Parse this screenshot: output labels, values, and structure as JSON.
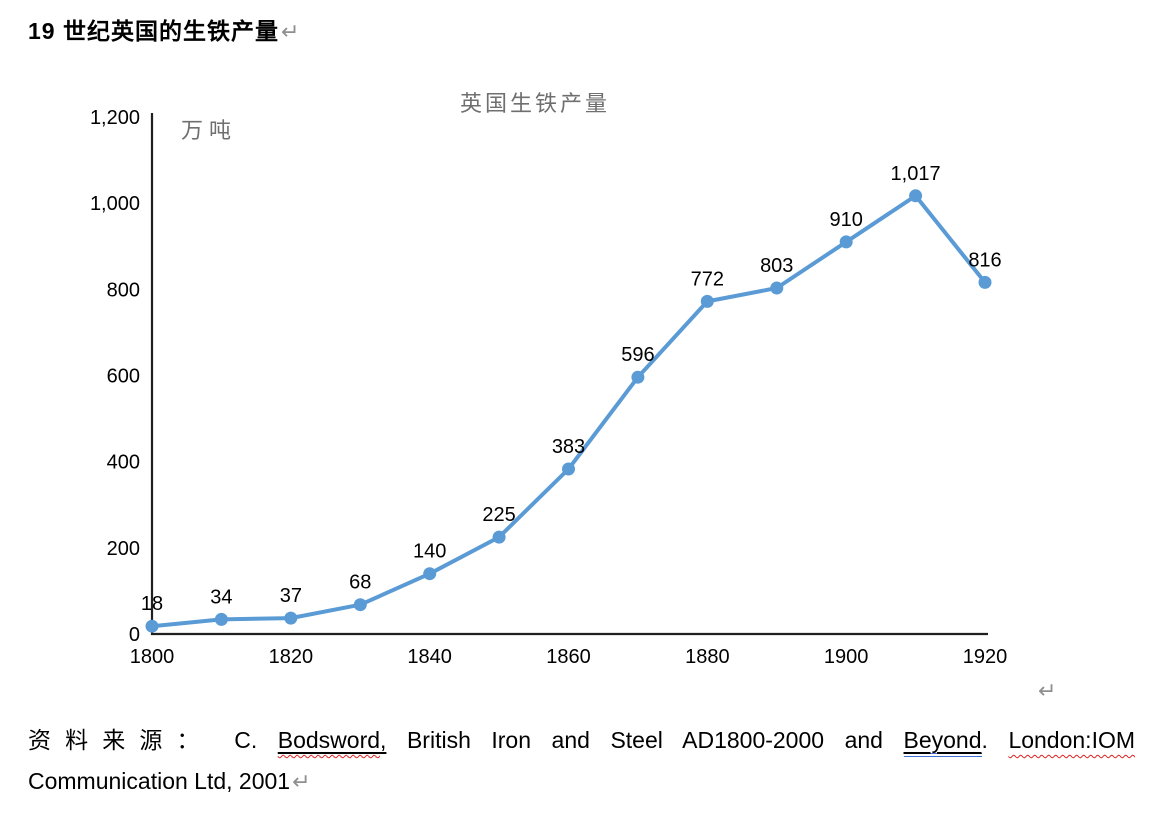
{
  "page": {
    "heading": "19 世纪英国的生铁产量",
    "pilcrow": "↵",
    "source": {
      "prefix": "资料来源：",
      "author_initial": "C.",
      "misspelled_author": "Bodsword",
      "comma": ",",
      "middle": "British Iron and Steel AD1800-2000 and",
      "underlined_word": "Beyond",
      "period": ".",
      "publisher": "London:IOM",
      "line2": "Communication Ltd, 2001"
    }
  },
  "chart_data": {
    "type": "line",
    "title": "英国生铁产量",
    "ylabel": "万吨",
    "x": [
      1800,
      1810,
      1820,
      1830,
      1840,
      1850,
      1860,
      1870,
      1880,
      1890,
      1900,
      1910,
      1920
    ],
    "values": [
      18,
      34,
      37,
      68,
      140,
      225,
      383,
      596,
      772,
      803,
      910,
      1017,
      816
    ],
    "point_labels": [
      "18",
      "34",
      "37",
      "68",
      "140",
      "225",
      "383",
      "596",
      "772",
      "803",
      "910",
      "1,017",
      "816"
    ],
    "x_ticks": [
      "1800",
      "1820",
      "1840",
      "1860",
      "1880",
      "1900",
      "1920"
    ],
    "x_tick_values": [
      1800,
      1820,
      1840,
      1860,
      1880,
      1900,
      1920
    ],
    "y_ticks": [
      "0",
      "200",
      "400",
      "600",
      "800",
      "1,000",
      "1,200"
    ],
    "y_tick_values": [
      0,
      200,
      400,
      600,
      800,
      1000,
      1200
    ],
    "xlim": [
      1800,
      1920
    ],
    "ylim": [
      0,
      1200
    ],
    "grid": false,
    "legend": "none",
    "line_color": "#5B9BD5",
    "marker_color": "#5B9BD5",
    "axis_color": "#1f1f1f",
    "label_color": "#000000",
    "title_color": "#6f6f6f"
  }
}
